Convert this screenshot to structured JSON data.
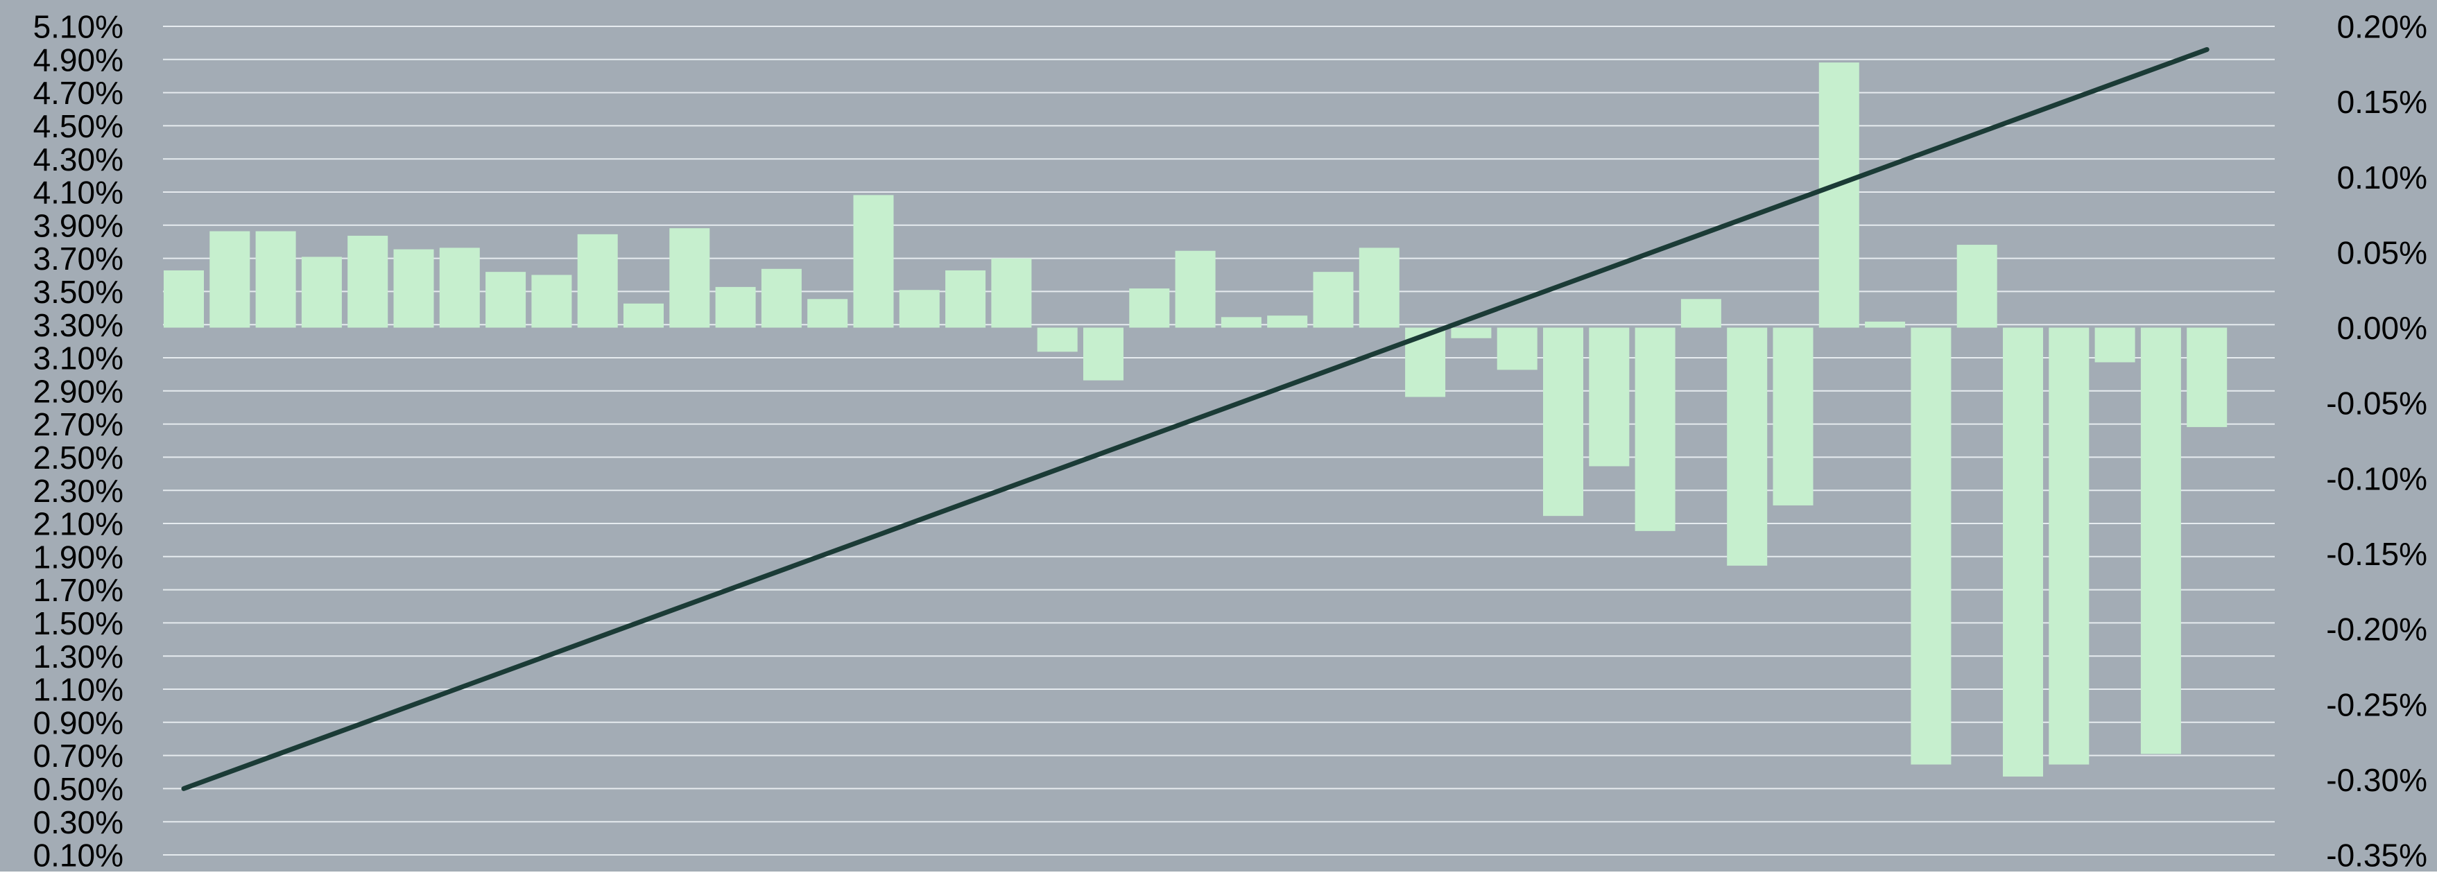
{
  "colors": {
    "background": "#A3ACB5",
    "gridline": "#E6EBEF",
    "bar": "#C6EFCE",
    "line": "#1B3B36",
    "text": "#000000"
  },
  "chart_data": {
    "type": "bar",
    "title": "",
    "xlabel": "",
    "ylabel": "",
    "grid": true,
    "legend": "none",
    "left_axis": {
      "ylim": [
        0.1,
        5.1
      ],
      "tick_labels": [
        "5.10%",
        "4.90%",
        "4.70%",
        "4.50%",
        "4.30%",
        "4.10%",
        "3.90%",
        "3.70%",
        "3.50%",
        "3.30%",
        "3.10%",
        "2.90%",
        "2.70%",
        "2.50%",
        "2.30%",
        "2.10%",
        "1.90%",
        "1.70%",
        "1.50%",
        "1.30%",
        "1.10%",
        "0.90%",
        "0.70%",
        "0.50%",
        "0.30%",
        "0.10%"
      ]
    },
    "right_axis": {
      "ylim": [
        -0.35,
        0.2
      ],
      "tick_labels": [
        "0.20%",
        "0.15%",
        "0.10%",
        "0.05%",
        "0.00%",
        "-0.05%",
        "-0.10%",
        "-0.15%",
        "-0.20%",
        "-0.25%",
        "-0.30%",
        "-0.35%"
      ]
    },
    "series": [
      {
        "type": "bar",
        "axis": "right",
        "values": [
          0.038,
          0.064,
          0.064,
          0.047,
          0.061,
          0.052,
          0.053,
          0.037,
          0.035,
          0.062,
          0.016,
          0.066,
          0.027,
          0.039,
          0.019,
          0.088,
          0.025,
          0.038,
          0.046,
          -0.016,
          -0.035,
          0.026,
          0.051,
          0.007,
          0.008,
          0.037,
          0.053,
          -0.046,
          -0.007,
          -0.028,
          -0.125,
          -0.092,
          -0.135,
          0.019,
          -0.158,
          -0.118,
          0.176,
          0.004,
          -0.29,
          0.055,
          -0.298,
          -0.29,
          -0.023,
          -0.283,
          -0.066
        ]
      },
      {
        "type": "line",
        "axis": "left",
        "x": [
          1,
          45
        ],
        "values": [
          0.5,
          4.96
        ]
      }
    ]
  }
}
